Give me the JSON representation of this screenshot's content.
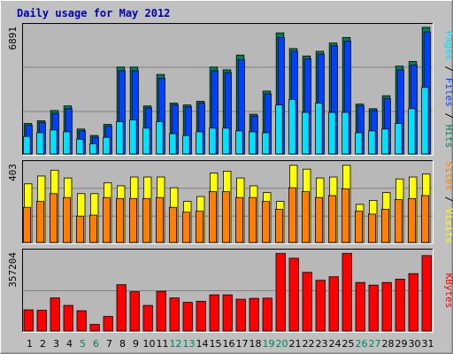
{
  "title": "Daily usage for May 2012",
  "colors": {
    "background": "#C0C0C0",
    "plot_bg": "#B8B8B8",
    "title": "#0000B0",
    "hits": "#00805C",
    "files": "#0040FF",
    "pages": "#00E0FF",
    "visits": "#FFFF00",
    "sites": "#FF8000",
    "kbytes": "#FF0000",
    "weekend_tick": "#00805C",
    "tick": "#000000"
  },
  "chart_data": [
    {
      "type": "bar",
      "name": "hits-files-pages",
      "categories": [
        "1",
        "2",
        "3",
        "4",
        "5",
        "6",
        "7",
        "8",
        "9",
        "10",
        "11",
        "12",
        "13",
        "14",
        "15",
        "16",
        "17",
        "18",
        "19",
        "20",
        "21",
        "22",
        "23",
        "24",
        "25",
        "26",
        "27",
        "28",
        "29",
        "30",
        "31"
      ],
      "weekend_categories": [
        "5",
        "6",
        "12",
        "13",
        "19",
        "20",
        "26",
        "27"
      ],
      "ymax_label": "6891",
      "ylim": [
        0,
        6891
      ],
      "side_label": [
        {
          "text": "Pages",
          "color": "#00E0FF"
        },
        {
          "text": " / ",
          "color": "#000000"
        },
        {
          "text": "Files",
          "color": "#0040FF"
        },
        {
          "text": " / ",
          "color": "#000000"
        },
        {
          "text": "Hits",
          "color": "#00805C"
        }
      ],
      "series": [
        {
          "name": "Hits",
          "color": "#00805C",
          "values": [
            1650,
            1800,
            2350,
            2600,
            1350,
            1000,
            1600,
            4700,
            4700,
            2600,
            4300,
            2750,
            2650,
            2850,
            4700,
            4550,
            5350,
            2150,
            3400,
            6550,
            5700,
            5300,
            5550,
            6000,
            6300,
            2700,
            2450,
            3150,
            4750,
            5000,
            6850
          ]
        },
        {
          "name": "Files",
          "color": "#0040FF",
          "values": [
            1550,
            1700,
            2200,
            2450,
            1250,
            900,
            1500,
            4500,
            4500,
            2500,
            4100,
            2650,
            2550,
            2750,
            4500,
            4400,
            5100,
            2050,
            3250,
            6300,
            5550,
            5150,
            5400,
            5850,
            6100,
            2600,
            2350,
            3000,
            4550,
            4800,
            6600
          ]
        },
        {
          "name": "Pages",
          "color": "#00E0FF",
          "values": [
            950,
            1150,
            1300,
            1200,
            800,
            550,
            900,
            1750,
            1850,
            1400,
            1750,
            1100,
            1000,
            1200,
            1400,
            1400,
            1250,
            1200,
            1150,
            2650,
            2950,
            2250,
            2750,
            2250,
            2250,
            1150,
            1250,
            1350,
            1650,
            2450,
            3600
          ]
        }
      ]
    },
    {
      "type": "bar",
      "name": "visits-sites",
      "categories": [
        "1",
        "2",
        "3",
        "4",
        "5",
        "6",
        "7",
        "8",
        "9",
        "10",
        "11",
        "12",
        "13",
        "14",
        "15",
        "16",
        "17",
        "18",
        "19",
        "20",
        "21",
        "22",
        "23",
        "24",
        "25",
        "26",
        "27",
        "28",
        "29",
        "30",
        "31"
      ],
      "ymax_label": "403",
      "ylim": [
        0,
        403
      ],
      "side_label": [
        {
          "text": "Sites",
          "color": "#FF8000"
        },
        {
          "text": " / ",
          "color": "#000000"
        },
        {
          "text": "Visits",
          "color": "#FFFF00"
        }
      ],
      "series": [
        {
          "name": "Visits",
          "color": "#FFFF00",
          "values": [
            300,
            340,
            370,
            330,
            250,
            250,
            305,
            290,
            335,
            335,
            335,
            280,
            210,
            235,
            355,
            365,
            330,
            290,
            255,
            210,
            395,
            375,
            330,
            335,
            395,
            195,
            215,
            255,
            325,
            335,
            350
          ]
        },
        {
          "name": "Sites",
          "color": "#FF8000",
          "values": [
            180,
            210,
            250,
            230,
            135,
            140,
            230,
            225,
            225,
            225,
            230,
            180,
            155,
            160,
            260,
            260,
            230,
            230,
            210,
            170,
            280,
            260,
            230,
            240,
            275,
            160,
            145,
            170,
            220,
            225,
            240
          ]
        }
      ]
    },
    {
      "type": "bar",
      "name": "kbytes",
      "categories": [
        "1",
        "2",
        "3",
        "4",
        "5",
        "6",
        "7",
        "8",
        "9",
        "10",
        "11",
        "12",
        "13",
        "14",
        "15",
        "16",
        "17",
        "18",
        "19",
        "20",
        "21",
        "22",
        "23",
        "24",
        "25",
        "26",
        "27",
        "28",
        "29",
        "30",
        "31"
      ],
      "ymax_label": "357204",
      "ylim": [
        0,
        357204
      ],
      "side_label": [
        {
          "text": "KBytes",
          "color": "#FF0000"
        }
      ],
      "series": [
        {
          "name": "KBytes",
          "color": "#FF0000",
          "values": [
            96000,
            94000,
            150000,
            116000,
            92000,
            30000,
            66000,
            210000,
            178000,
            116000,
            180000,
            150000,
            130000,
            135000,
            164000,
            164000,
            144000,
            148000,
            149000,
            352000,
            330000,
            266000,
            230000,
            246000,
            352000,
            220000,
            208000,
            220000,
            235000,
            260000,
            342000
          ]
        }
      ]
    }
  ]
}
